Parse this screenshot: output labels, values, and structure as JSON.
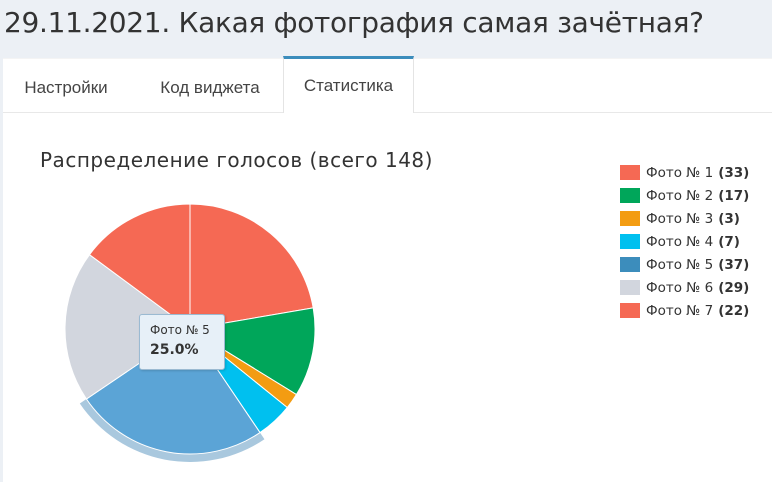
{
  "page": {
    "title": "29.11.2021. Какая фотография самая зачётная?"
  },
  "tabs": [
    {
      "label": "Настройки"
    },
    {
      "label": "Код виджета"
    },
    {
      "label": "Статистика",
      "active": true
    }
  ],
  "chart_data": {
    "type": "pie",
    "title": "Распределение голосов (всего 148)",
    "total": 148,
    "slices": [
      {
        "label": "Фото № 1",
        "value": 33,
        "count_label": "(33)",
        "color": "#f56954"
      },
      {
        "label": "Фото № 2",
        "value": 17,
        "count_label": "(17)",
        "color": "#00a65a"
      },
      {
        "label": "Фото № 3",
        "value": 3,
        "count_label": "(3)",
        "color": "#f39c12"
      },
      {
        "label": "Фото № 4",
        "value": 7,
        "count_label": "(7)",
        "color": "#00c0ef"
      },
      {
        "label": "Фото № 5",
        "value": 37,
        "count_label": "(37)",
        "color": "#3c8dbc"
      },
      {
        "label": "Фото № 6",
        "value": 29,
        "count_label": "(29)",
        "color": "#d2d6de"
      },
      {
        "label": "Фото № 7",
        "value": 22,
        "count_label": "(22)",
        "color": "#f56954"
      }
    ],
    "legend_position": "right",
    "highlighted": 4,
    "tooltip": {
      "label": "Фото № 5",
      "value": "25.0%"
    }
  }
}
